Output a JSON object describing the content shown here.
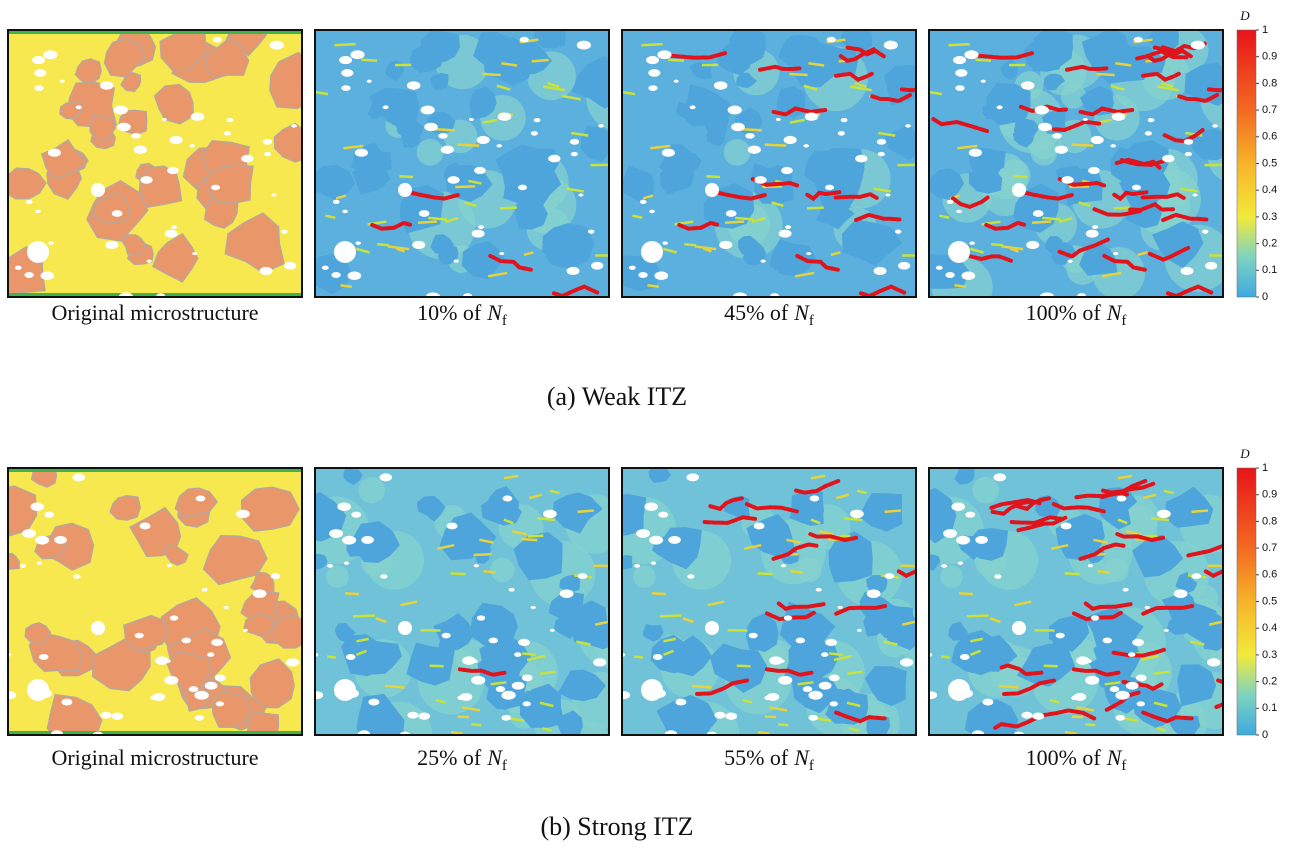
{
  "figure": {
    "rows": [
      {
        "caption": "(a) Weak ITZ",
        "panels": [
          {
            "label": "Original microstructure"
          },
          {
            "prefix": "10% of",
            "symbol": "N",
            "sub": "f"
          },
          {
            "prefix": "45% of",
            "symbol": "N",
            "sub": "f"
          },
          {
            "prefix": "100% of",
            "symbol": "N",
            "sub": "f"
          }
        ],
        "colorbar": {
          "label": "D",
          "ticks": [
            0,
            0.1,
            0.2,
            0.3,
            0.4,
            0.5,
            0.6,
            0.7,
            0.8,
            0.9,
            1
          ]
        }
      },
      {
        "caption": "(b) Strong ITZ",
        "panels": [
          {
            "label": "Original microstructure"
          },
          {
            "prefix": "25% of",
            "symbol": "N",
            "sub": "f"
          },
          {
            "prefix": "55% of",
            "symbol": "N",
            "sub": "f"
          },
          {
            "prefix": "100% of",
            "symbol": "N",
            "sub": "f"
          }
        ],
        "colorbar": {
          "label": "D",
          "ticks": [
            0,
            0.1,
            0.2,
            0.3,
            0.4,
            0.5,
            0.6,
            0.7,
            0.8,
            0.9,
            1
          ]
        }
      }
    ]
  }
}
